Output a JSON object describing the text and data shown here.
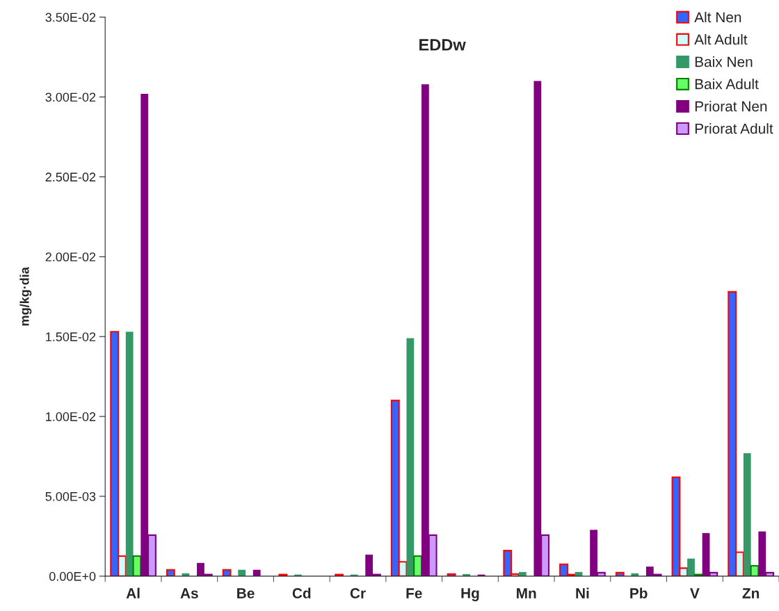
{
  "chart_data": {
    "type": "bar",
    "title": "EDDw",
    "ylabel": "mg/kg·dia",
    "categories": [
      "Al",
      "As",
      "Be",
      "Cd",
      "Cr",
      "Fe",
      "Hg",
      "Mn",
      "Ni",
      "Pb",
      "V",
      "Zn"
    ],
    "series": [
      {
        "name": "Alt Nen",
        "color": "#3366ff",
        "values": [
          0.0153,
          0.0004,
          0.0004,
          0.0001,
          0.0001,
          0.011,
          0.00013,
          0.0016,
          0.00074,
          0.00022,
          0.0062,
          0.0178
        ]
      },
      {
        "name": "Alt Adult",
        "color": "#ccffff",
        "values": [
          0.00126,
          0,
          0,
          0,
          0,
          0.0009,
          0,
          0.00013,
          0.0001,
          0,
          0.0005,
          0.0015
        ]
      },
      {
        "name": "Baix Nen",
        "color": "#339966",
        "values": [
          0.0153,
          0.00018,
          0.0004,
          0.0001,
          0.0001,
          0.0149,
          0.00013,
          0.00026,
          0.00026,
          0.00018,
          0.0011,
          0.0077
        ]
      },
      {
        "name": "Baix Adult",
        "color": "#66ff66",
        "values": [
          0.00126,
          0,
          0,
          0,
          0,
          0.00126,
          0,
          0,
          0,
          0,
          0.0001,
          0.00065
        ]
      },
      {
        "name": "Priorat Nen",
        "color": "#800080",
        "values": [
          0.0302,
          0.00083,
          0.0004,
          0,
          0.00135,
          0.0308,
          0.0001,
          0.031,
          0.0029,
          0.0006,
          0.0027,
          0.0028
        ]
      },
      {
        "name": "Priorat Adult",
        "color": "#cc99ff",
        "values": [
          0.00257,
          0.0001,
          0,
          0,
          0.0001,
          0.00257,
          0,
          0.00257,
          0.00022,
          0.0001,
          0.00022,
          0.00022
        ]
      }
    ],
    "ylim": [
      0,
      0.035
    ],
    "yticks": [
      {
        "value": 0,
        "label": "0.00E+0"
      },
      {
        "value": 0.005,
        "label": "5.00E-03"
      },
      {
        "value": 0.01,
        "label": "1.00E-02"
      },
      {
        "value": 0.015,
        "label": "1.50E-02"
      },
      {
        "value": 0.02,
        "label": "2.00E-02"
      },
      {
        "value": 0.025,
        "label": "2.50E-02"
      },
      {
        "value": 0.03,
        "label": "3.00E-02"
      },
      {
        "value": 0.035,
        "label": "3.50E-02"
      }
    ],
    "grid": false,
    "legend": "top right"
  }
}
